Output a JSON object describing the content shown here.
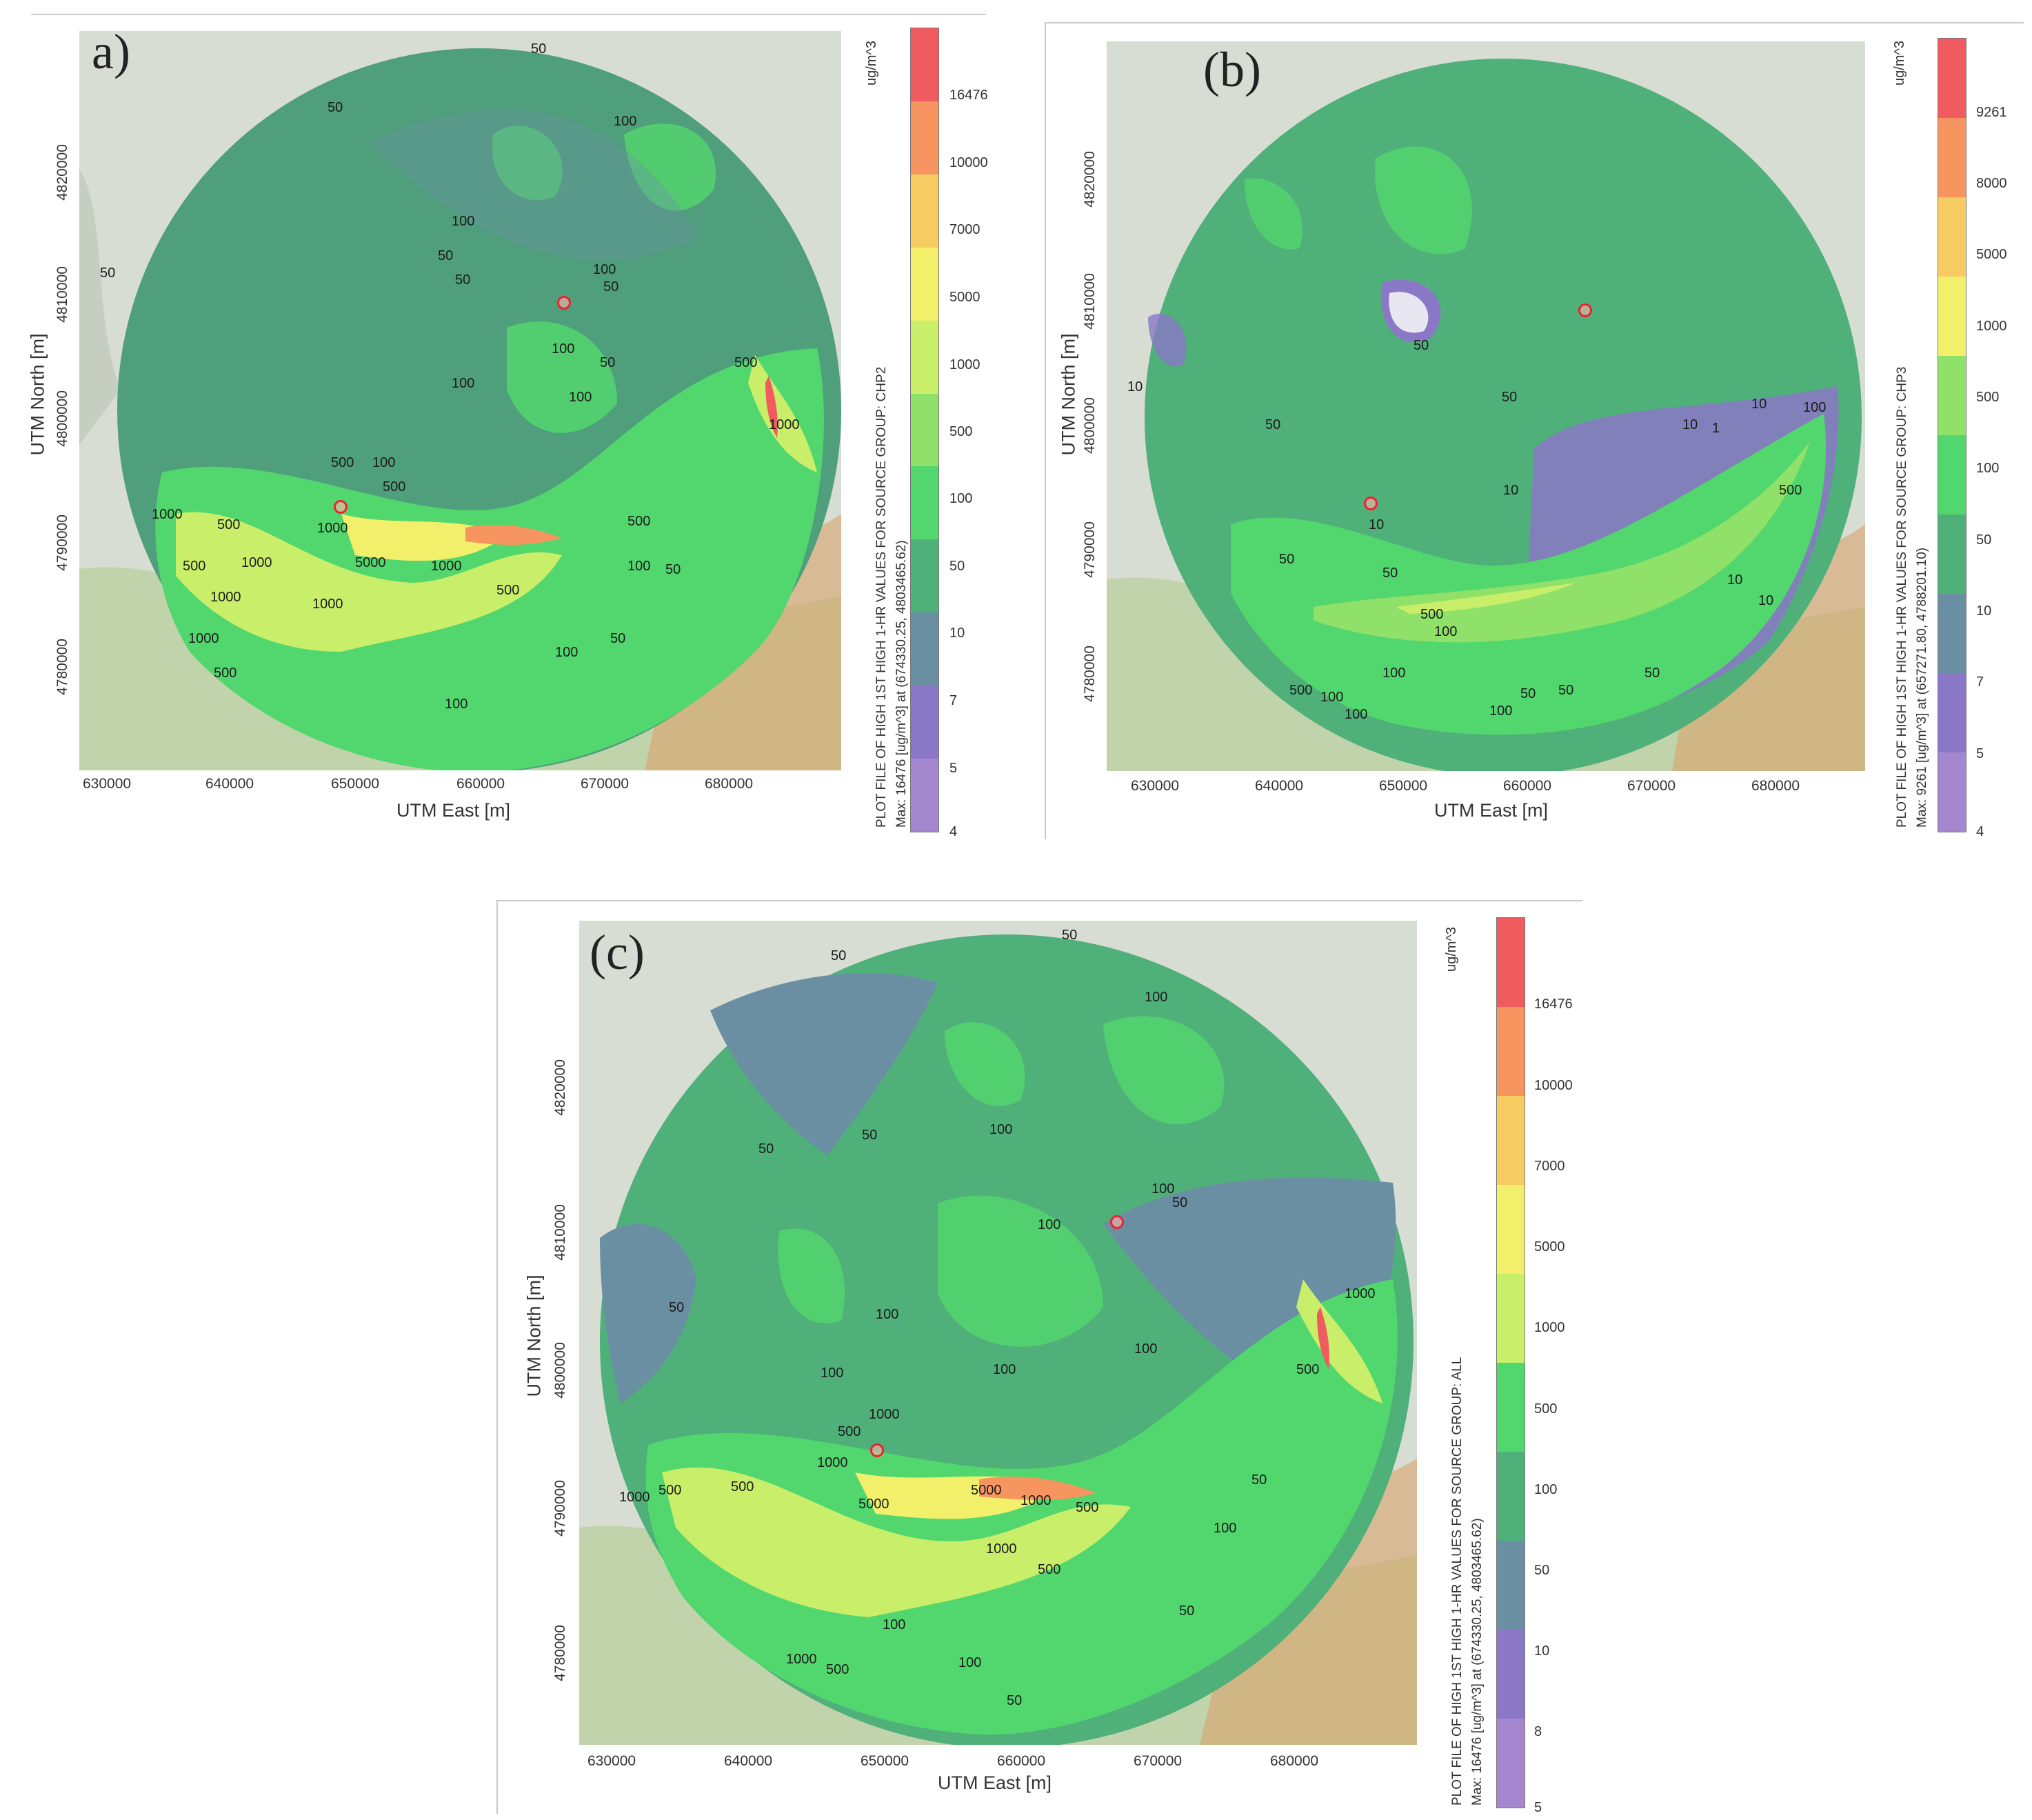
{
  "colors": {
    "bins": [
      "#ef5b5f",
      "#f79560",
      "#f6cb62",
      "#f2ef6a",
      "#c9ef6a",
      "#8fe16a",
      "#52d66e",
      "#4fb07a",
      "#6a8fa3",
      "#8a78c7",
      "#a487cf"
    ]
  },
  "panels": [
    {
      "id": "a",
      "label": "a)",
      "x_title": "UTM East [m]",
      "y_title": "UTM North [m]",
      "x_ticks": [
        "630000",
        "640000",
        "650000",
        "660000",
        "670000",
        "680000"
      ],
      "y_ticks": [
        "4820000",
        "4810000",
        "4800000",
        "4790000",
        "4780000"
      ],
      "legend_unit": "ug/m^3",
      "legend_labels": [
        "16476",
        "10000",
        "7000",
        "5000",
        "1000",
        "500",
        "100",
        "50",
        "10",
        "7",
        "5",
        "4"
      ],
      "caption_line1": "PLOT FILE OF HIGH 1ST HIGH 1-HR VALUES FOR SOURCE GROUP: CHP2",
      "caption_line2": "Max: 16476  [ug/m^3]  at  (674330.25, 4803465.62)",
      "contour_labels": [
        "50",
        "50",
        "100",
        "100",
        "50",
        "50",
        "100",
        "50",
        "50",
        "100",
        "100",
        "100",
        "50",
        "500",
        "100",
        "500",
        "500",
        "1000",
        "1000",
        "500",
        "1000",
        "5000",
        "1000",
        "1000",
        "500",
        "1000",
        "1000",
        "500",
        "100",
        "50",
        "100",
        "50",
        "500",
        "100",
        "1000",
        "500"
      ]
    },
    {
      "id": "b",
      "label": "(b)",
      "x_title": "UTM East [m]",
      "y_title": "UTM North [m]",
      "x_ticks": [
        "630000",
        "640000",
        "650000",
        "660000",
        "670000",
        "680000"
      ],
      "y_ticks": [
        "4820000",
        "4810000",
        "4800000",
        "4790000",
        "4780000"
      ],
      "legend_unit": "ug/m^3",
      "legend_labels": [
        "9261",
        "8000",
        "5000",
        "1000",
        "500",
        "100",
        "50",
        "10",
        "7",
        "5",
        "4"
      ],
      "caption_line1": "PLOT FILE OF HIGH 1ST HIGH 1-HR VALUES FOR SOURCE GROUP: CHP3",
      "caption_line2": "Max: 9261  [ug/m^3]  at  (657271.80, 4788201.10)",
      "contour_labels": [
        "50",
        "50",
        "50",
        "10",
        "10",
        "10",
        "10",
        "1",
        "10",
        "50",
        "50",
        "500",
        "100",
        "500",
        "100",
        "50",
        "100",
        "50",
        "100",
        "100",
        "50",
        "10",
        "10",
        "500",
        "100"
      ]
    },
    {
      "id": "c",
      "label": "(c)",
      "x_title": "UTM East [m]",
      "y_title": "UTM North [m]",
      "x_ticks": [
        "630000",
        "640000",
        "650000",
        "660000",
        "670000",
        "680000"
      ],
      "y_ticks": [
        "4820000",
        "4810000",
        "4800000",
        "4790000",
        "4780000"
      ],
      "legend_unit": "ug/m^3",
      "legend_labels": [
        "16476",
        "10000",
        "7000",
        "5000",
        "1000",
        "500",
        "100",
        "50",
        "10",
        "8",
        "5"
      ],
      "caption_line1": "PLOT FILE OF HIGH 1ST HIGH 1-HR VALUES FOR SOURCE GROUP: ALL",
      "caption_line2": "Max: 16476  [ug/m^3]  at  (674330.25, 4803465.62)",
      "contour_labels": [
        "50",
        "50",
        "50",
        "100",
        "100",
        "50",
        "100",
        "100",
        "50",
        "100",
        "100",
        "100",
        "100",
        "50",
        "1000",
        "500",
        "5000",
        "1000",
        "500",
        "1000",
        "5000",
        "1000",
        "500",
        "1000",
        "500",
        "100",
        "50",
        "100",
        "50",
        "500",
        "1000",
        "500",
        "100",
        "50",
        "1000",
        "500"
      ]
    }
  ]
}
